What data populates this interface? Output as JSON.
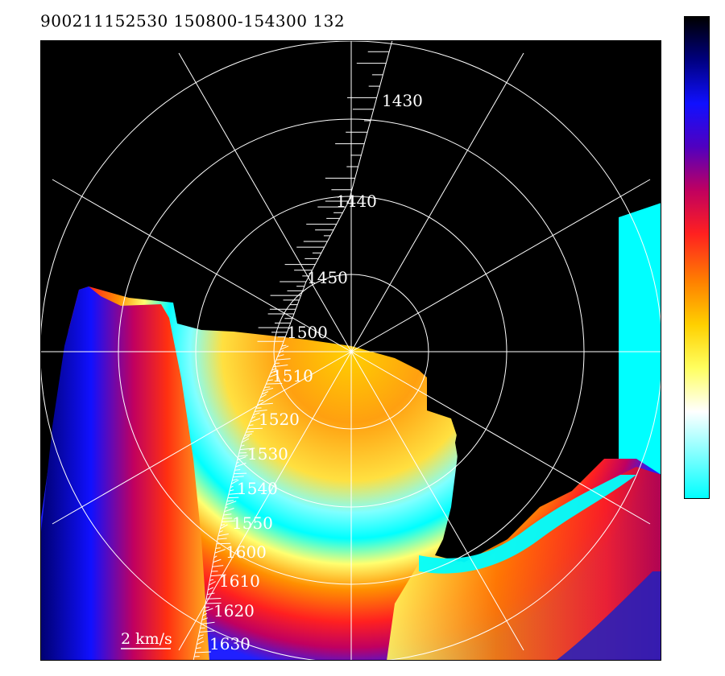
{
  "header": {
    "title": "900211152530 150800-154300 132"
  },
  "colors": {
    "background": "#000000",
    "grid": "#ffffff",
    "vectors": "#ffffff",
    "labels": "#ffffff",
    "scale": [
      "#00ffff",
      "#80ffff",
      "#ffffff",
      "#ffff60",
      "#ffd000",
      "#ff8000",
      "#ff2020",
      "#c00060",
      "#5000c0",
      "#1010ff",
      "#000080",
      "#000000"
    ]
  },
  "chart_data": {
    "type": "heatmap",
    "title": "900211152530 150800-154300 132",
    "projection": "polar",
    "rings": 4,
    "spokes_deg": [
      0,
      30,
      60,
      90,
      120,
      150
    ],
    "track_labels": [
      "1430",
      "1440",
      "1450",
      "1500",
      "1510",
      "1520",
      "1530",
      "1540",
      "1550",
      "1600",
      "1610",
      "1620",
      "1630"
    ],
    "vector_scale_label": "2 km/s",
    "colorbar": {
      "orientation": "vertical",
      "placement": "right"
    }
  }
}
